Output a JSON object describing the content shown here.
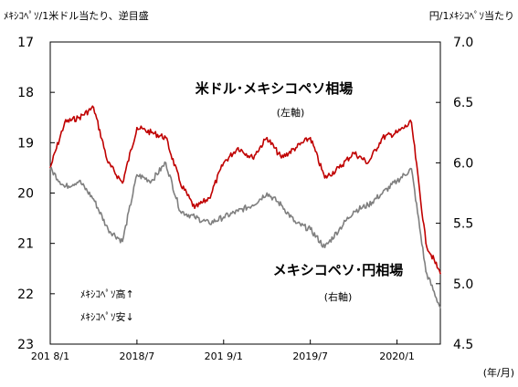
{
  "chart_data": {
    "type": "line",
    "ylabel_left": "ﾒｷｼｺﾍﾟｿ/1米ドル当たり、逆目盛",
    "ylabel_right": "円/1ﾒｷｼｺﾍﾟｿ当たり",
    "xlabel": "(年/月)",
    "left_axis": {
      "min": 17,
      "max": 23,
      "inverted": true,
      "ticks": [
        "17",
        "18",
        "19",
        "20",
        "21",
        "22",
        "23"
      ]
    },
    "right_axis": {
      "min": 4.5,
      "max": 7.0,
      "ticks": [
        "7.0",
        "6.5",
        "6.0",
        "5.5",
        "5.0",
        "4.5"
      ]
    },
    "x_ticks": [
      "201 8/1",
      "2018/7",
      "201 9/1",
      "2019/7",
      "2020/1"
    ],
    "x_range": [
      "2018-01",
      "2020-04"
    ],
    "series": [
      {
        "name": "米ドル･メキシコペソ相場",
        "axis_note": "(左軸)",
        "axis": "left",
        "color": "#c00000",
        "x": [
          "2018-01",
          "2018-02",
          "2018-03",
          "2018-04",
          "2018-05",
          "2018-06",
          "2018-07",
          "2018-08",
          "2018-09",
          "2018-10",
          "2018-11",
          "2018-12",
          "2019-01",
          "2019-02",
          "2019-03",
          "2019-04",
          "2019-05",
          "2019-06",
          "2019-07",
          "2019-08",
          "2019-09",
          "2019-10",
          "2019-11",
          "2019-12",
          "2020-01",
          "2020-02",
          "2020-03",
          "2020-04"
        ],
        "values": [
          19.5,
          18.6,
          18.5,
          18.3,
          19.4,
          19.8,
          18.7,
          18.8,
          18.9,
          19.8,
          20.3,
          20.1,
          19.4,
          19.1,
          19.3,
          18.9,
          19.3,
          19.1,
          18.9,
          19.7,
          19.5,
          19.2,
          19.4,
          18.9,
          18.8,
          18.6,
          21.0,
          21.6
        ]
      },
      {
        "name": "メキシコペソ･円相場",
        "axis_note": "(右軸)",
        "axis": "right",
        "color": "#7f7f7f",
        "x": [
          "2018-01",
          "2018-02",
          "2018-03",
          "2018-04",
          "2018-05",
          "2018-06",
          "2018-07",
          "2018-08",
          "2018-09",
          "2018-10",
          "2018-11",
          "2018-12",
          "2019-01",
          "2019-02",
          "2019-03",
          "2019-04",
          "2019-05",
          "2019-06",
          "2019-07",
          "2019-08",
          "2019-09",
          "2019-10",
          "2019-11",
          "2019-12",
          "2020-01",
          "2020-02",
          "2020-03",
          "2020-04"
        ],
        "values": [
          5.95,
          5.8,
          5.85,
          5.7,
          5.45,
          5.35,
          5.9,
          5.85,
          6.0,
          5.6,
          5.55,
          5.5,
          5.55,
          5.6,
          5.65,
          5.75,
          5.65,
          5.5,
          5.45,
          5.3,
          5.45,
          5.6,
          5.65,
          5.75,
          5.85,
          5.95,
          5.1,
          4.8
        ]
      }
    ],
    "annotations": {
      "peso_up": "ﾒｷｼｺﾍﾟｿ高↑",
      "peso_down": "ﾒｷｼｺﾍﾟｿ安↓"
    },
    "grid": false,
    "legend": "inline"
  }
}
